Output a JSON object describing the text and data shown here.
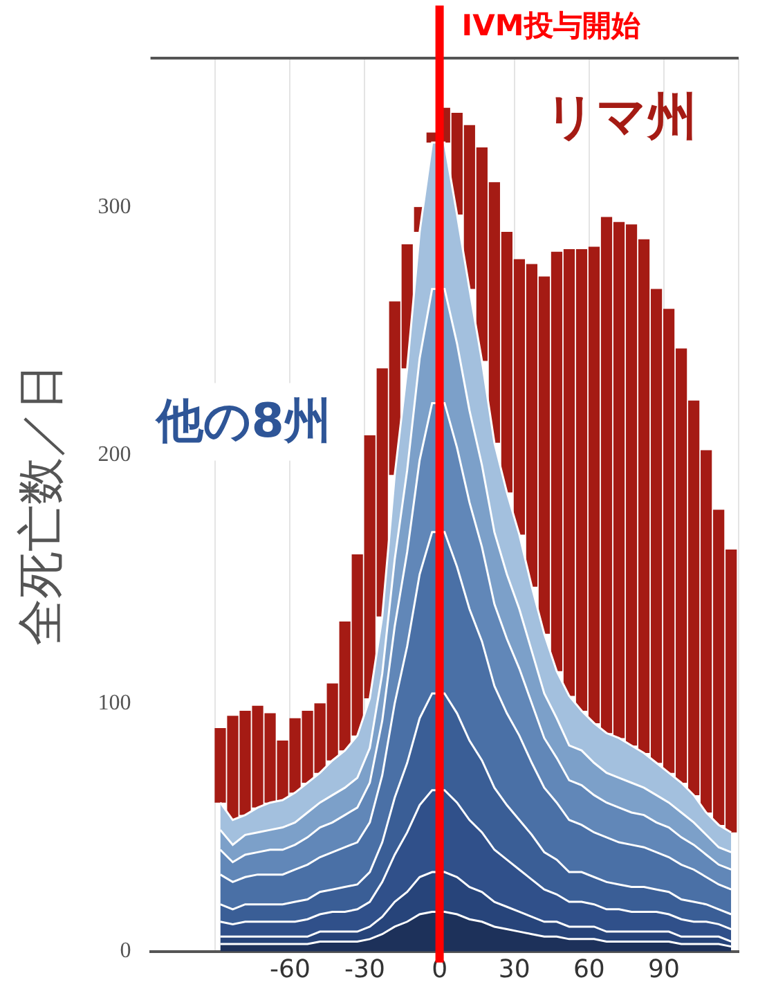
{
  "chart_data": {
    "type": "area",
    "ylabel": "全死亡数／日",
    "stacked": true,
    "grid": "x",
    "legend": "top right",
    "x": [
      -88,
      -83,
      -78,
      -73,
      -68,
      -63,
      -58,
      -53,
      -48,
      -43,
      -38,
      -33,
      -28,
      -23,
      -18,
      -13,
      -8,
      -3,
      2,
      7,
      12,
      17,
      22,
      27,
      32,
      37,
      42,
      47,
      52,
      57,
      62,
      67,
      72,
      77,
      82,
      87,
      92,
      97,
      102,
      107,
      112,
      117
    ],
    "xlim": [
      -116,
      120
    ],
    "xticks": [
      {
        "value": -90,
        "label": null
      },
      -60,
      -30,
      0,
      30,
      60,
      90,
      {
        "value": 120,
        "label": null
      }
    ],
    "ylim": [
      0,
      360
    ],
    "yticks": [
      0,
      100,
      200,
      300
    ],
    "ref_lines": [
      {
        "axis": "x",
        "value": 0,
        "label": "IVM投与開始",
        "color": "#ff0000"
      }
    ],
    "annotations": [
      "他の8州"
    ],
    "series": [
      {
        "color": "#1d315a",
        "values": [
          3,
          3,
          3,
          3,
          3,
          3,
          3,
          3,
          4,
          4,
          4,
          4,
          5,
          7,
          10,
          12,
          15,
          16,
          16,
          15,
          13,
          12,
          10,
          9,
          8,
          7,
          6,
          6,
          5,
          5,
          5,
          4,
          4,
          4,
          4,
          4,
          4,
          3,
          3,
          3,
          3,
          2
        ]
      },
      {
        "color": "#27447a",
        "values": [
          3,
          3,
          3,
          3,
          3,
          3,
          3,
          3,
          4,
          4,
          4,
          4,
          5,
          7,
          10,
          12,
          15,
          16,
          16,
          15,
          13,
          12,
          10,
          9,
          8,
          7,
          6,
          6,
          5,
          5,
          5,
          4,
          4,
          4,
          4,
          4,
          4,
          3,
          3,
          3,
          3,
          2
        ]
      },
      {
        "color": "#30508a",
        "values": [
          6,
          5,
          6,
          6,
          6,
          6,
          6,
          7,
          7,
          8,
          8,
          9,
          10,
          14,
          19,
          24,
          29,
          33,
          33,
          30,
          27,
          24,
          21,
          19,
          17,
          15,
          13,
          11,
          10,
          10,
          9,
          9,
          9,
          8,
          8,
          8,
          7,
          7,
          6,
          6,
          5,
          5
        ]
      },
      {
        "color": "#3a5e96",
        "values": [
          7,
          6,
          7,
          7,
          7,
          7,
          8,
          8,
          9,
          9,
          10,
          10,
          12,
          16,
          23,
          28,
          35,
          39,
          39,
          36,
          32,
          29,
          25,
          22,
          20,
          18,
          15,
          14,
          12,
          12,
          11,
          11,
          10,
          10,
          10,
          9,
          9,
          8,
          8,
          7,
          6,
          6
        ]
      },
      {
        "color": "#4a70a6",
        "values": [
          12,
          11,
          11,
          12,
          12,
          12,
          13,
          14,
          14,
          15,
          16,
          17,
          20,
          27,
          38,
          47,
          58,
          65,
          65,
          59,
          53,
          48,
          41,
          37,
          34,
          29,
          26,
          23,
          21,
          19,
          18,
          18,
          17,
          17,
          16,
          15,
          14,
          14,
          13,
          11,
          10,
          10
        ]
      },
      {
        "color": "#6187b8",
        "values": [
          10,
          8,
          9,
          9,
          10,
          10,
          10,
          11,
          12,
          12,
          13,
          14,
          16,
          22,
          31,
          38,
          46,
          52,
          52,
          48,
          43,
          38,
          33,
          30,
          27,
          24,
          20,
          18,
          16,
          16,
          15,
          14,
          14,
          13,
          13,
          12,
          12,
          11,
          10,
          9,
          8,
          8
        ]
      },
      {
        "color": "#7ca0c9",
        "values": [
          8,
          7,
          8,
          8,
          8,
          9,
          9,
          10,
          10,
          11,
          11,
          12,
          14,
          19,
          27,
          33,
          41,
          46,
          46,
          42,
          37,
          33,
          29,
          26,
          24,
          21,
          18,
          16,
          14,
          14,
          13,
          12,
          12,
          12,
          11,
          11,
          10,
          10,
          9,
          8,
          7,
          7
        ]
      },
      {
        "color": "#a3c0de",
        "values": [
          11,
          10,
          8,
          10,
          11,
          11,
          12,
          12,
          12,
          14,
          15,
          17,
          20,
          23,
          34,
          41,
          51,
          59,
          59,
          52,
          49,
          42,
          36,
          33,
          30,
          26,
          24,
          19,
          20,
          16,
          16,
          16,
          16,
          15,
          14,
          13,
          12,
          12,
          11,
          9,
          9,
          8
        ]
      },
      {
        "type": "bar",
        "name": "リマ州",
        "color": "#a51b14",
        "base": [
          60,
          53,
          55,
          58,
          60,
          61,
          64,
          68,
          72,
          77,
          81,
          87,
          102,
          135,
          192,
          235,
          290,
          326,
          326,
          297,
          267,
          238,
          205,
          185,
          168,
          147,
          128,
          113,
          103,
          97,
          92,
          88,
          86,
          83,
          80,
          76,
          72,
          68,
          63,
          56,
          51,
          48
        ],
        "values": [
          30,
          42,
          42,
          41,
          36,
          24,
          30,
          29,
          28,
          31,
          52,
          73,
          106,
          100,
          70,
          50,
          10,
          4,
          14,
          41,
          66,
          86,
          105,
          105,
          111,
          130,
          144,
          169,
          180,
          186,
          192,
          208,
          208,
          210,
          207,
          191,
          187,
          175,
          159,
          146,
          127,
          114
        ]
      }
    ]
  }
}
